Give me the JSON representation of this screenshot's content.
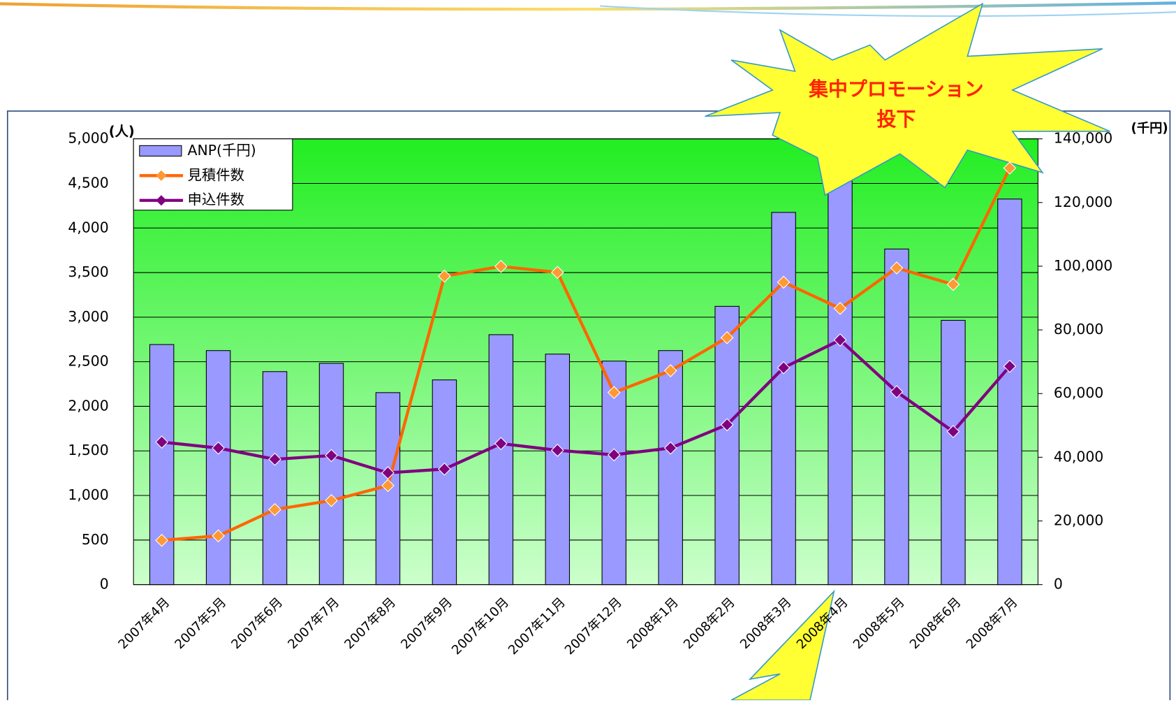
{
  "chart_data": {
    "type": "bar_line",
    "categories": [
      "2007年4月",
      "2007年5月",
      "2007年6月",
      "2007年7月",
      "2007年8月",
      "2007年9月",
      "2007年10月",
      "2007年11月",
      "2007年12月",
      "2008年1月",
      "2008年2月",
      "2008年3月",
      "2008年4月",
      "2008年5月",
      "2008年6月",
      "2008年7月"
    ],
    "series": [
      {
        "name": "ANP(千円)",
        "type": "bar",
        "axis": "y2",
        "color": "#9999ff",
        "values": [
          75400,
          73500,
          66900,
          69500,
          60300,
          64300,
          78500,
          72400,
          70200,
          73500,
          87400,
          116900,
          127700,
          105400,
          83000,
          121100
        ]
      },
      {
        "name": "見積件数",
        "type": "line",
        "color": "#ff6600",
        "values": [
          497,
          547,
          842,
          943,
          1111,
          3460,
          3569,
          3502,
          2155,
          2399,
          2770,
          3392,
          3098,
          3552,
          3367,
          4672
        ]
      },
      {
        "name": "申込件数",
        "type": "line",
        "color": "#800080",
        "values": [
          1599,
          1532,
          1406,
          1448,
          1254,
          1296,
          1582,
          1507,
          1456,
          1532,
          1793,
          2433,
          2744,
          2163,
          1717,
          2449
        ]
      }
    ],
    "ylabel": "(人)",
    "y2label": "(千円)",
    "ylim": [
      0,
      5000
    ],
    "yticks": [
      0,
      500,
      {
        "value": 1000,
        "label": "1,000"
      },
      {
        "value": 1500,
        "label": "1,500"
      },
      {
        "value": 2000,
        "label": "2,000"
      },
      {
        "value": 2500,
        "label": "2,500"
      },
      {
        "value": 3000,
        "label": "3,000"
      },
      {
        "value": 3500,
        "label": "3,500"
      },
      {
        "value": 4000,
        "label": "4,000"
      },
      {
        "value": 4500,
        "label": "4,500"
      },
      {
        "value": 5000,
        "label": "5,000"
      }
    ],
    "y2lim": [
      0,
      140000
    ],
    "y2ticks": [
      0,
      {
        "value": 20000,
        "label": "20,000"
      },
      {
        "value": 40000,
        "label": "40,000"
      },
      {
        "value": 60000,
        "label": "60,000"
      },
      {
        "value": 80000,
        "label": "80,000"
      },
      {
        "value": 100000,
        "label": "100,000"
      },
      {
        "value": 120000,
        "label": "120,000"
      },
      {
        "value": 140000,
        "label": "140,000"
      }
    ],
    "grid": true,
    "legend": "upper left",
    "annotations": [
      "集中プロモーション",
      "投下"
    ]
  }
}
